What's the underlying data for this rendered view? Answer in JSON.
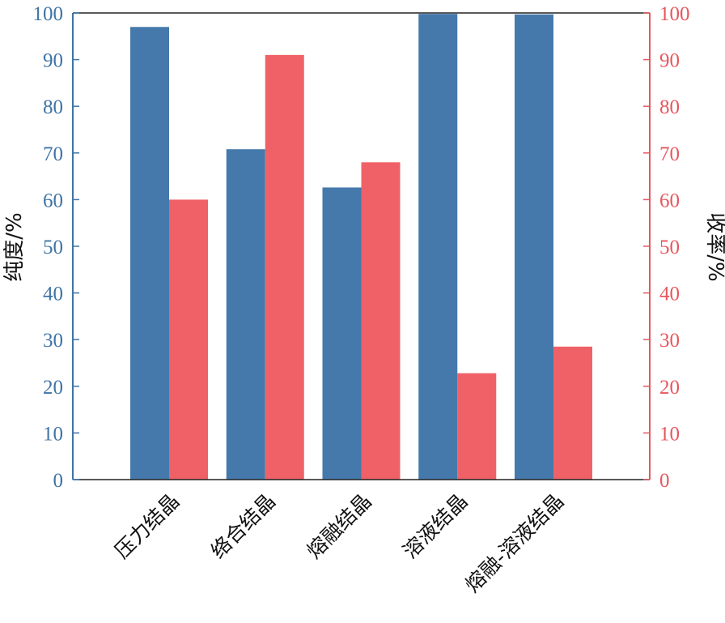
{
  "chart_data": {
    "type": "bar",
    "categories": [
      "压力结晶",
      "络合结晶",
      "熔融结晶",
      "溶液结晶",
      "熔融-溶液结晶"
    ],
    "series": [
      {
        "name": "",
        "axis": "left",
        "color": "#4579ab",
        "values": [
          97.0,
          70.8,
          62.6,
          99.8,
          99.7
        ]
      },
      {
        "name": "",
        "axis": "right",
        "color": "#ef6167",
        "values": [
          60.0,
          91.0,
          68.0,
          22.8,
          28.5
        ]
      }
    ],
    "ylabel_left": "纯度/%",
    "ylabel_right": "收率/%",
    "ylim_left": [
      0,
      100
    ],
    "ylim_right": [
      0,
      100
    ],
    "yticks_left": [
      "0",
      "10",
      "20",
      "30",
      "40",
      "50",
      "60",
      "70",
      "80",
      "90",
      "100"
    ],
    "yticks_right": [
      "0",
      "10",
      "20",
      "30",
      "40",
      "50",
      "60",
      "70",
      "80",
      "90",
      "100"
    ],
    "left_axis_color": "#3f74a6",
    "right_axis_color": "#e7575e",
    "grid": false,
    "legend": "none"
  }
}
